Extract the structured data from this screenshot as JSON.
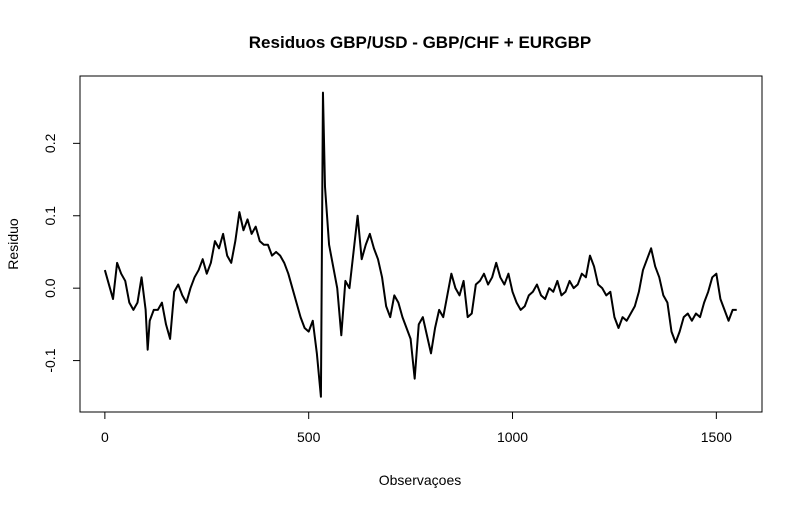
{
  "chart_data": {
    "type": "line",
    "title": "Residuos GBP/USD - GBP/CHF + EURGBP",
    "x_label": "Observaçoes",
    "y_label": "Residuo",
    "color": "#000000",
    "x": [
      0,
      10,
      20,
      30,
      40,
      50,
      60,
      70,
      80,
      90,
      100,
      105,
      110,
      120,
      130,
      140,
      150,
      160,
      170,
      180,
      190,
      200,
      210,
      220,
      230,
      240,
      250,
      260,
      270,
      280,
      290,
      300,
      310,
      320,
      330,
      340,
      350,
      360,
      370,
      380,
      390,
      400,
      410,
      420,
      430,
      440,
      450,
      460,
      470,
      480,
      490,
      500,
      510,
      520,
      530,
      535,
      540,
      550,
      560,
      570,
      580,
      590,
      600,
      610,
      620,
      630,
      640,
      650,
      660,
      670,
      680,
      690,
      700,
      710,
      720,
      730,
      740,
      750,
      760,
      770,
      780,
      790,
      800,
      810,
      820,
      830,
      840,
      850,
      860,
      870,
      880,
      890,
      900,
      910,
      920,
      930,
      940,
      950,
      960,
      970,
      980,
      990,
      1000,
      1010,
      1020,
      1030,
      1040,
      1050,
      1060,
      1070,
      1080,
      1090,
      1100,
      1110,
      1120,
      1130,
      1140,
      1150,
      1160,
      1170,
      1180,
      1190,
      1200,
      1210,
      1220,
      1230,
      1240,
      1250,
      1260,
      1270,
      1280,
      1290,
      1300,
      1310,
      1320,
      1330,
      1340,
      1350,
      1360,
      1370,
      1380,
      1390,
      1400,
      1410,
      1420,
      1430,
      1440,
      1450,
      1460,
      1470,
      1480,
      1490,
      1500,
      1510,
      1520,
      1530,
      1540,
      1550
    ],
    "values": [
      0.025,
      0.005,
      -0.015,
      0.035,
      0.02,
      0.01,
      -0.02,
      -0.03,
      -0.02,
      0.015,
      -0.03,
      -0.085,
      -0.045,
      -0.03,
      -0.03,
      -0.02,
      -0.05,
      -0.07,
      -0.005,
      0.005,
      -0.01,
      -0.02,
      0.0,
      0.015,
      0.025,
      0.04,
      0.02,
      0.035,
      0.065,
      0.055,
      0.075,
      0.045,
      0.035,
      0.065,
      0.105,
      0.08,
      0.095,
      0.075,
      0.085,
      0.065,
      0.06,
      0.06,
      0.045,
      0.05,
      0.045,
      0.035,
      0.02,
      0.0,
      -0.02,
      -0.04,
      -0.055,
      -0.06,
      -0.045,
      -0.09,
      -0.15,
      0.27,
      0.14,
      0.06,
      0.03,
      0.0,
      -0.065,
      0.01,
      0.0,
      0.05,
      0.1,
      0.04,
      0.06,
      0.075,
      0.055,
      0.04,
      0.015,
      -0.025,
      -0.04,
      -0.01,
      -0.02,
      -0.04,
      -0.055,
      -0.07,
      -0.125,
      -0.05,
      -0.04,
      -0.065,
      -0.09,
      -0.055,
      -0.03,
      -0.04,
      -0.01,
      0.02,
      0.0,
      -0.01,
      0.01,
      -0.04,
      -0.035,
      0.005,
      0.01,
      0.02,
      0.005,
      0.015,
      0.035,
      0.015,
      0.005,
      0.02,
      -0.005,
      -0.02,
      -0.03,
      -0.025,
      -0.01,
      -0.005,
      0.005,
      -0.01,
      -0.015,
      0.0,
      -0.005,
      0.01,
      -0.01,
      -0.005,
      0.01,
      0.0,
      0.005,
      0.02,
      0.015,
      0.045,
      0.03,
      0.005,
      0.0,
      -0.01,
      -0.005,
      -0.04,
      -0.055,
      -0.04,
      -0.045,
      -0.035,
      -0.025,
      -0.005,
      0.025,
      0.04,
      0.055,
      0.03,
      0.015,
      -0.01,
      -0.02,
      -0.06,
      -0.075,
      -0.06,
      -0.04,
      -0.035,
      -0.045,
      -0.035,
      -0.04,
      -0.02,
      -0.005,
      0.015,
      0.02,
      -0.015,
      -0.03,
      -0.045,
      -0.03,
      -0.03
    ],
    "xlim": [
      -61,
      1612
    ],
    "ylim": [
      -0.171,
      0.293
    ],
    "xticks": [
      0,
      500,
      1000,
      1500
    ],
    "yticks": [
      -0.1,
      {
        "value": 0,
        "label": "0.0"
      },
      0.1,
      0.2
    ]
  }
}
